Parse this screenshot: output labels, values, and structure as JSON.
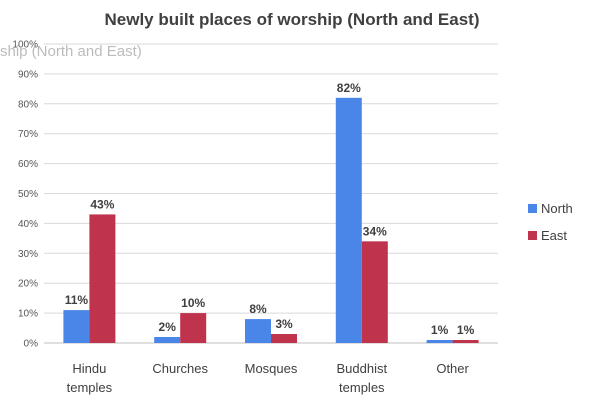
{
  "chart_data": {
    "type": "bar",
    "title": "Newly built places of worship (North and East)",
    "subtitle_overlay": "ship (North and East)",
    "categories": [
      [
        "Hindu",
        "temples"
      ],
      [
        "Churches"
      ],
      [
        "Mosques"
      ],
      [
        "Buddhist",
        "temples"
      ],
      [
        "Other"
      ]
    ],
    "series": [
      {
        "name": "North",
        "color": "#4a86e8",
        "values": [
          11,
          2,
          8,
          82,
          1
        ],
        "labels": [
          "11%",
          "2%",
          "8%",
          "82%",
          "1%"
        ]
      },
      {
        "name": "East",
        "color": "#c0334d",
        "values": [
          43,
          10,
          3,
          34,
          1
        ],
        "labels": [
          "43%",
          "10%",
          "3%",
          "34%",
          "1%"
        ]
      }
    ],
    "ylim": [
      0,
      100
    ],
    "yticks": [
      "0%",
      "10%",
      "20%",
      "30%",
      "40%",
      "50%",
      "60%",
      "70%",
      "80%",
      "90%",
      "100%"
    ],
    "grid": true,
    "legend_position": "right"
  }
}
